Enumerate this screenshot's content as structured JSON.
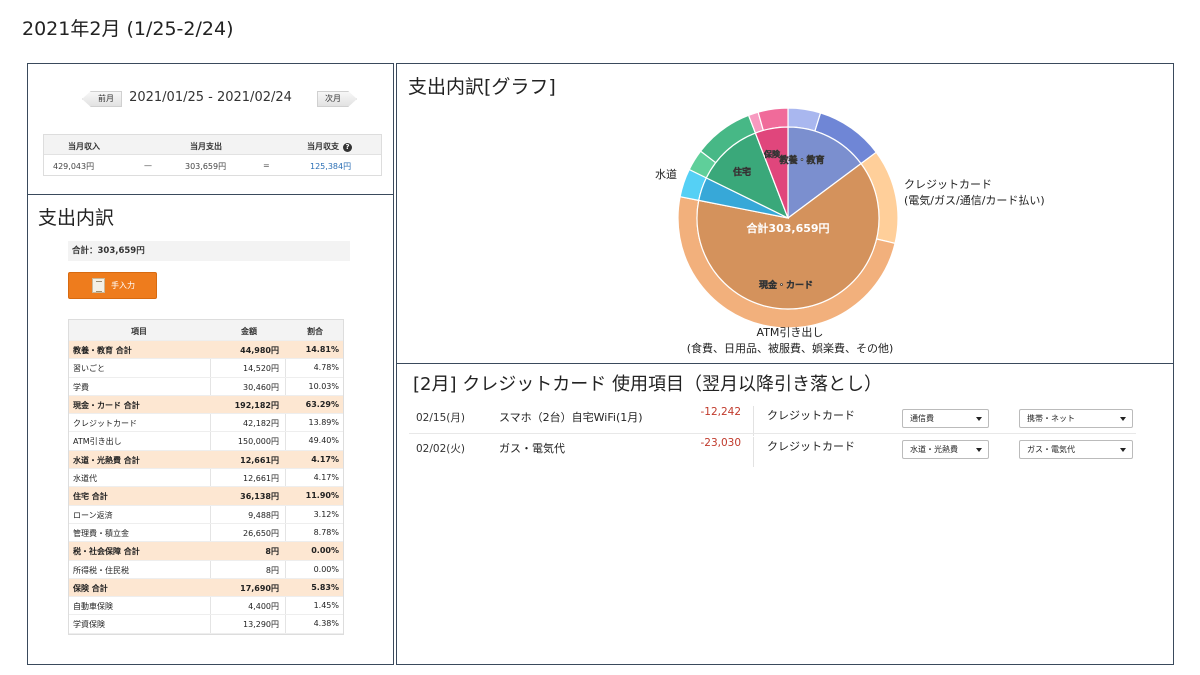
{
  "page_title": "2021年2月 (1/25-2/24)",
  "summary": {
    "prev_label": "前月",
    "next_label": "次月",
    "range": "2021/01/25 - 2021/02/24",
    "headers": {
      "income": "当月収入",
      "expense": "当月支出",
      "balance": "当月収支"
    },
    "values": {
      "income": "429,043円",
      "minus": "—",
      "expense": "303,659円",
      "equals": "=",
      "balance": "125,384円"
    },
    "help_icon": "?"
  },
  "breakdown": {
    "heading": "支出内訳",
    "total": "合計：303,659円",
    "manual_button": "手入力",
    "columns": {
      "item": "項目",
      "amount": "金額",
      "ratio": "割合"
    },
    "rows": [
      {
        "name": "教養・教育 合計",
        "amount": "44,980円",
        "ratio": "14.81%",
        "is_category": true
      },
      {
        "name": "習いごと",
        "amount": "14,520円",
        "ratio": "4.78%",
        "is_category": false
      },
      {
        "name": "学費",
        "amount": "30,460円",
        "ratio": "10.03%",
        "is_category": false
      },
      {
        "name": "現金・カード 合計",
        "amount": "192,182円",
        "ratio": "63.29%",
        "is_category": true
      },
      {
        "name": "クレジットカード",
        "amount": "42,182円",
        "ratio": "13.89%",
        "is_category": false
      },
      {
        "name": "ATM引き出し",
        "amount": "150,000円",
        "ratio": "49.40%",
        "is_category": false
      },
      {
        "name": "水道・光熱費 合計",
        "amount": "12,661円",
        "ratio": "4.17%",
        "is_category": true
      },
      {
        "name": "水道代",
        "amount": "12,661円",
        "ratio": "4.17%",
        "is_category": false
      },
      {
        "name": "住宅 合計",
        "amount": "36,138円",
        "ratio": "11.90%",
        "is_category": true
      },
      {
        "name": "ローン返済",
        "amount": "9,488円",
        "ratio": "3.12%",
        "is_category": false
      },
      {
        "name": "管理費・積立金",
        "amount": "26,650円",
        "ratio": "8.78%",
        "is_category": false
      },
      {
        "name": "税・社会保障 合計",
        "amount": "8円",
        "ratio": "0.00%",
        "is_category": true
      },
      {
        "name": "所得税・住民税",
        "amount": "8円",
        "ratio": "0.00%",
        "is_category": false
      },
      {
        "name": "保険 合計",
        "amount": "17,690円",
        "ratio": "5.83%",
        "is_category": true
      },
      {
        "name": "自動車保険",
        "amount": "4,400円",
        "ratio": "1.45%",
        "is_category": false
      },
      {
        "name": "学資保険",
        "amount": "13,290円",
        "ratio": "4.38%",
        "is_category": false
      }
    ]
  },
  "graph": {
    "heading": "支出内訳[グラフ]",
    "center_label": "合計303,659円",
    "callouts": {
      "water": "水道",
      "credit_line1": "クレジットカード",
      "credit_line2": "(電気/ガス/通信/カード払い)",
      "atm_line1": "ATM引き出し",
      "atm_line2": "(食費、日用品、被服費、娯楽費、その他)"
    },
    "inner_labels": {
      "education": "教養・教育",
      "cash_card": "現金・カード",
      "housing": "住宅",
      "insurance": "保険"
    },
    "colors": {
      "education": "#7b8fcf",
      "cash_card": "#d4925c",
      "water_util": "#37a8d8",
      "housing": "#3aa87a",
      "insurance": "#e0467c"
    }
  },
  "chart_data": {
    "type": "pie",
    "title": "支出内訳[グラフ]",
    "inner_ring": [
      {
        "name": "教養・教育",
        "value": 44980
      },
      {
        "name": "現金・カード",
        "value": 192182
      },
      {
        "name": "水道・光熱費",
        "value": 12661
      },
      {
        "name": "住宅",
        "value": 36138
      },
      {
        "name": "税・社会保障",
        "value": 8
      },
      {
        "name": "保険",
        "value": 17690
      }
    ],
    "outer_ring": [
      {
        "name": "習いごと",
        "value": 14520,
        "group": "教養・教育"
      },
      {
        "name": "学費",
        "value": 30460,
        "group": "教養・教育"
      },
      {
        "name": "クレジットカード",
        "value": 42182,
        "group": "現金・カード"
      },
      {
        "name": "ATM引き出し",
        "value": 150000,
        "group": "現金・カード"
      },
      {
        "name": "水道代",
        "value": 12661,
        "group": "水道・光熱費"
      },
      {
        "name": "ローン返済",
        "value": 9488,
        "group": "住宅"
      },
      {
        "name": "管理費・積立金",
        "value": 26650,
        "group": "住宅"
      },
      {
        "name": "所得税・住民税",
        "value": 8,
        "group": "税・社会保障"
      },
      {
        "name": "自動車保険",
        "value": 4400,
        "group": "保険"
      },
      {
        "name": "学資保険",
        "value": 13290,
        "group": "保険"
      }
    ],
    "total": 303659
  },
  "card_usage": {
    "title": "[2月] クレジットカード 使用項目（翌月以降引き落とし）",
    "rows": [
      {
        "date": "02/15(月)",
        "desc": "スマホ（2台）自宅WiFi(1月)",
        "amount": "-12,242",
        "method": "クレジットカード",
        "cat1": "通信費",
        "cat2": "携帯・ネット"
      },
      {
        "date": "02/02(火)",
        "desc": "ガス・電気代",
        "amount": "-23,030",
        "method": "クレジットカード",
        "cat1": "水道・光熱費",
        "cat2": "ガス・電気代"
      }
    ]
  }
}
